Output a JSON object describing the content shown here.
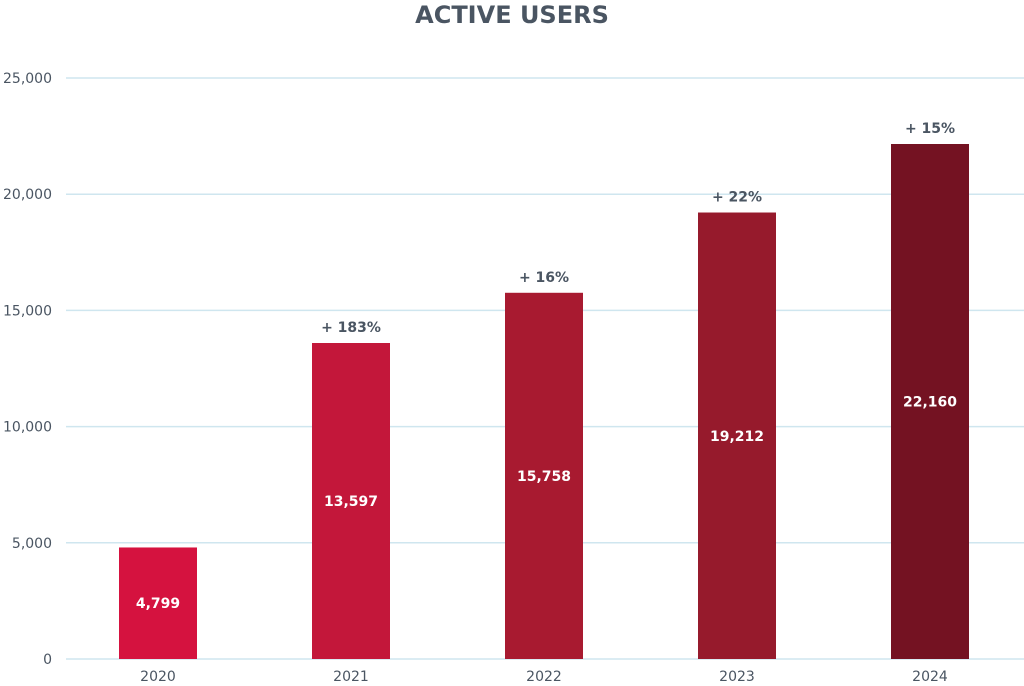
{
  "chart_data": {
    "type": "bar",
    "title": "ACTIVE USERS",
    "categories": [
      "2020",
      "2021",
      "2022",
      "2023",
      "2024"
    ],
    "values": [
      4799,
      13597,
      15758,
      19212,
      22160
    ],
    "value_labels": [
      "4,799",
      "13,597",
      "15,758",
      "19,212",
      "22,160"
    ],
    "growth_labels": [
      "",
      "+ 183%",
      "+ 16%",
      "+ 22%",
      "+ 15%"
    ],
    "bar_colors": [
      "#d5123f",
      "#c3173a",
      "#a81a30",
      "#961a2c",
      "#741222"
    ],
    "ylim": [
      0,
      25000
    ],
    "yticks": [
      0,
      5000,
      10000,
      15000,
      20000,
      25000
    ],
    "ytick_labels": [
      "0",
      "5,000",
      "10,000",
      "15,000",
      "20,000",
      "25,000"
    ],
    "grid": true,
    "grid_color": "#cfe6ef",
    "text_color": "#4a5562",
    "xlabel": "",
    "ylabel": ""
  }
}
